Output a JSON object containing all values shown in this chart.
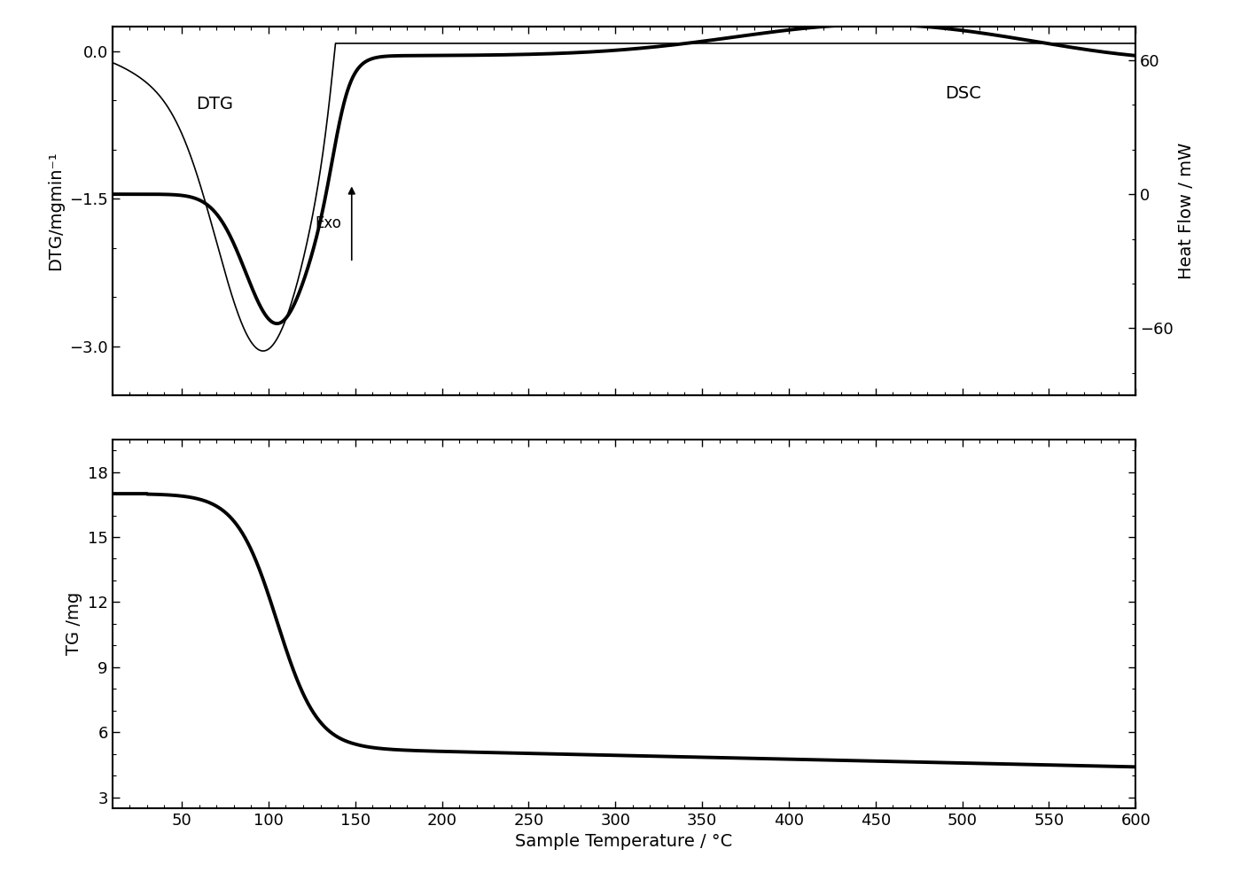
{
  "title": "",
  "xlabel": "Sample Temperature / °C",
  "top_ylabel_left": "DTG/mgmin⁻¹",
  "top_ylabel_right": "Heat Flow / mW",
  "bottom_ylabel": "TG /mg",
  "xlim": [
    10,
    600
  ],
  "dtg_ylim": [
    -3.5,
    0.25
  ],
  "dsc_ylim": [
    -90,
    75
  ],
  "tg_ylim": [
    2.5,
    19.5
  ],
  "dtg_yticks": [
    0.0,
    -1.5,
    -3.0
  ],
  "dsc_yticks": [
    60,
    0,
    -60
  ],
  "tg_yticks": [
    3,
    6,
    9,
    12,
    15,
    18
  ],
  "xticks": [
    50,
    100,
    150,
    200,
    250,
    300,
    350,
    400,
    450,
    500,
    550,
    600
  ],
  "line_color": "#000000",
  "background_color": "#ffffff"
}
